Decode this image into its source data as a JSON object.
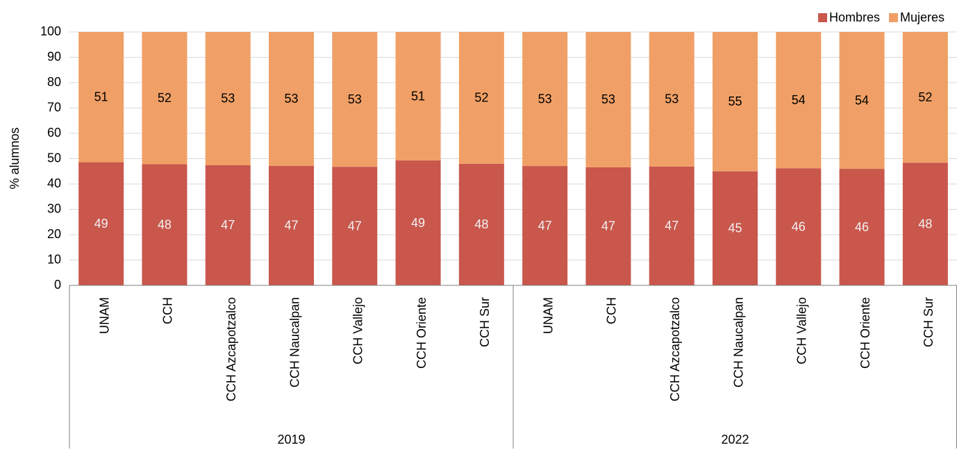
{
  "chart_data": {
    "type": "stacked-bar",
    "y_label": "% alumnos",
    "groups": [
      {
        "name": "2019",
        "categories": [
          "UNAM",
          "CCH",
          "CCH Azcapotzalco",
          "CCH Naucalpan",
          "CCH Vallejo",
          "CCH Oriente",
          "CCH Sur"
        ]
      },
      {
        "name": "2022",
        "categories": [
          "UNAM",
          "CCH",
          "CCH Azcapotzalco",
          "CCH Naucalpan",
          "CCH Vallejo",
          "CCH Oriente",
          "CCH Sur"
        ]
      }
    ],
    "series": [
      {
        "name": "Hombres",
        "color": "#c9574c",
        "label_color": "#f2f2f2",
        "values": [
          48.6,
          47.8,
          47.4,
          47.2,
          46.8,
          49.3,
          48.0,
          47.1,
          46.6,
          46.9,
          45.0,
          46.2,
          46.0,
          48.4
        ],
        "value_labels": [
          "49",
          "48",
          "47",
          "47",
          "47",
          "49",
          "48",
          "47",
          "47",
          "47",
          "45",
          "46",
          "46",
          "48"
        ]
      },
      {
        "name": "Mujeres",
        "color": "#f0a066",
        "label_color": "#000000",
        "values": [
          51.4,
          52.2,
          52.6,
          52.8,
          53.2,
          50.7,
          52.0,
          52.9,
          53.4,
          53.1,
          55.0,
          53.8,
          54.0,
          51.6
        ],
        "value_labels": [
          "51",
          "52",
          "53",
          "53",
          "53",
          "51",
          "52",
          "53",
          "53",
          "53",
          "55",
          "54",
          "54",
          "52"
        ]
      }
    ],
    "ylim": [
      0,
      100
    ],
    "yticks": [
      0,
      10,
      20,
      30,
      40,
      50,
      60,
      70,
      80,
      90,
      100
    ],
    "grid": true,
    "legend": "top-right"
  }
}
